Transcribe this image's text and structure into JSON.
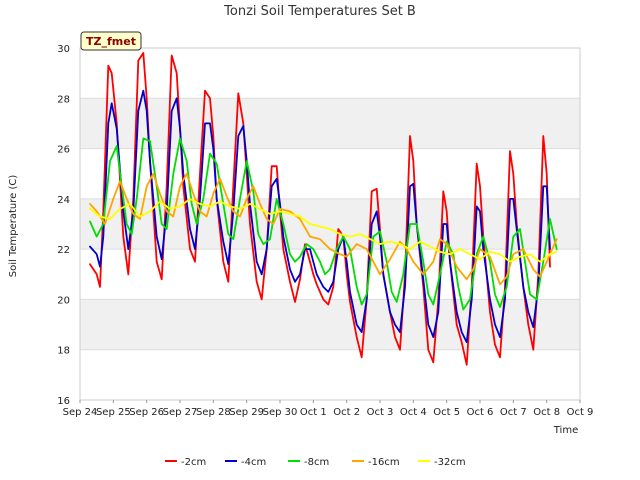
{
  "chart_data": {
    "type": "line",
    "title": "Tonzi Soil Temperatures Set B",
    "xlabel": "Time",
    "ylabel": "Soil Temperature (C)",
    "badge": "TZ_fmet",
    "xlim": [
      0,
      15
    ],
    "ylim": [
      16,
      30
    ],
    "x_tick_labels": [
      "Sep 24",
      "Sep 25",
      "Sep 26",
      "Sep 27",
      "Sep 28",
      "Sep 29",
      "Sep 30",
      "Oct 1",
      "Oct 2",
      "Oct 3",
      "Oct 4",
      "Oct 5",
      "Oct 6",
      "Oct 7",
      "Oct 8",
      "Oct 9"
    ],
    "y_ticks": [
      16,
      18,
      20,
      22,
      24,
      26,
      28,
      30
    ],
    "banding": true,
    "legend_position": "bottom",
    "series": [
      {
        "name": "-2cm",
        "color": "#ff0000",
        "x": [
          0.3,
          0.5,
          0.6,
          0.7,
          0.85,
          0.95,
          1.1,
          1.3,
          1.45,
          1.6,
          1.75,
          1.9,
          2.0,
          2.1,
          2.3,
          2.45,
          2.6,
          2.75,
          2.9,
          3.0,
          3.1,
          3.3,
          3.45,
          3.6,
          3.75,
          3.9,
          4.0,
          4.1,
          4.3,
          4.45,
          4.6,
          4.75,
          4.9,
          5.0,
          5.1,
          5.3,
          5.45,
          5.6,
          5.75,
          5.9,
          6.0,
          6.1,
          6.3,
          6.45,
          6.6,
          6.75,
          6.9,
          7.0,
          7.1,
          7.3,
          7.45,
          7.6,
          7.75,
          7.9,
          8.0,
          8.1,
          8.3,
          8.45,
          8.6,
          8.75,
          8.9,
          9.0,
          9.1,
          9.3,
          9.45,
          9.6,
          9.75,
          9.9,
          10.0,
          10.1,
          10.3,
          10.45,
          10.6,
          10.75,
          10.9,
          11.0,
          11.1,
          11.3,
          11.45,
          11.6,
          11.75,
          11.9,
          12.0,
          12.1,
          12.3,
          12.45,
          12.6,
          12.75,
          12.9,
          13.0,
          13.1,
          13.3,
          13.45,
          13.6,
          13.75,
          13.9,
          14.0,
          14.1
        ],
        "values": [
          21.4,
          21.0,
          20.5,
          23.5,
          29.3,
          29.0,
          27.0,
          22.5,
          21.0,
          24.0,
          29.5,
          29.8,
          28.0,
          25.5,
          21.5,
          20.8,
          24.5,
          29.7,
          29.0,
          26.8,
          24.5,
          22.0,
          21.5,
          25.0,
          28.3,
          28.0,
          26.5,
          24.0,
          21.5,
          20.7,
          24.5,
          28.2,
          27.0,
          25.0,
          23.0,
          20.7,
          20.0,
          22.0,
          25.3,
          25.3,
          23.5,
          22.0,
          20.7,
          19.9,
          20.8,
          22.2,
          21.5,
          21.0,
          20.6,
          20.0,
          19.8,
          20.5,
          22.8,
          22.5,
          21.0,
          19.9,
          18.5,
          17.7,
          20.0,
          24.3,
          24.4,
          22.8,
          21.0,
          19.5,
          18.5,
          18.0,
          21.0,
          26.5,
          25.5,
          23.0,
          20.5,
          18.0,
          17.5,
          20.0,
          24.3,
          23.5,
          21.5,
          19.0,
          18.3,
          17.4,
          20.5,
          25.4,
          24.5,
          22.5,
          19.5,
          18.2,
          17.7,
          20.5,
          25.9,
          25.0,
          23.0,
          20.5,
          19.0,
          18.0,
          21.0,
          26.5,
          25.0,
          21.3
        ]
      },
      {
        "name": "-4cm",
        "color": "#0000cc",
        "x": [
          0.3,
          0.5,
          0.6,
          0.7,
          0.85,
          0.95,
          1.1,
          1.3,
          1.45,
          1.6,
          1.75,
          1.9,
          2.0,
          2.1,
          2.3,
          2.45,
          2.6,
          2.75,
          2.9,
          3.0,
          3.1,
          3.3,
          3.45,
          3.6,
          3.75,
          3.9,
          4.0,
          4.1,
          4.3,
          4.45,
          4.6,
          4.75,
          4.9,
          5.0,
          5.1,
          5.3,
          5.45,
          5.6,
          5.75,
          5.9,
          6.0,
          6.1,
          6.3,
          6.45,
          6.6,
          6.75,
          6.9,
          7.0,
          7.1,
          7.3,
          7.45,
          7.6,
          7.75,
          7.9,
          8.0,
          8.1,
          8.3,
          8.45,
          8.6,
          8.75,
          8.9,
          9.0,
          9.1,
          9.3,
          9.45,
          9.6,
          9.75,
          9.9,
          10.0,
          10.1,
          10.3,
          10.45,
          10.6,
          10.75,
          10.9,
          11.0,
          11.1,
          11.3,
          11.45,
          11.6,
          11.75,
          11.9,
          12.0,
          12.1,
          12.3,
          12.45,
          12.6,
          12.75,
          12.9,
          13.0,
          13.1,
          13.3,
          13.45,
          13.6,
          13.75,
          13.9,
          14.0,
          14.1
        ],
        "values": [
          22.1,
          21.8,
          21.3,
          22.5,
          27.0,
          27.8,
          26.8,
          23.5,
          22.0,
          23.5,
          27.5,
          28.3,
          27.5,
          25.5,
          22.5,
          21.6,
          23.5,
          27.5,
          28.0,
          26.8,
          25.0,
          22.8,
          22.0,
          24.0,
          27.0,
          27.0,
          26.0,
          24.0,
          22.3,
          21.4,
          23.5,
          26.5,
          26.9,
          25.5,
          23.8,
          21.5,
          21.0,
          22.0,
          24.5,
          24.8,
          23.8,
          22.5,
          21.2,
          20.7,
          21.0,
          22.0,
          22.0,
          21.5,
          21.0,
          20.5,
          20.3,
          20.7,
          22.0,
          22.5,
          21.5,
          20.3,
          19.0,
          18.7,
          20.0,
          23.0,
          23.5,
          22.5,
          21.0,
          19.5,
          19.0,
          18.7,
          20.5,
          24.5,
          24.6,
          23.0,
          20.8,
          19.0,
          18.5,
          19.5,
          23.0,
          23.0,
          21.5,
          19.5,
          18.7,
          18.3,
          20.0,
          23.7,
          23.5,
          22.0,
          20.0,
          19.0,
          18.5,
          20.0,
          24.0,
          24.0,
          22.8,
          20.5,
          19.5,
          18.9,
          20.5,
          24.5,
          24.5,
          22.0
        ]
      },
      {
        "name": "-8cm",
        "color": "#00dd00",
        "x": [
          0.3,
          0.5,
          0.7,
          0.9,
          1.1,
          1.25,
          1.4,
          1.55,
          1.7,
          1.9,
          2.1,
          2.3,
          2.45,
          2.6,
          2.8,
          3.0,
          3.2,
          3.35,
          3.5,
          3.7,
          3.9,
          4.1,
          4.3,
          4.45,
          4.6,
          4.8,
          5.0,
          5.2,
          5.35,
          5.5,
          5.7,
          5.9,
          6.1,
          6.3,
          6.45,
          6.6,
          6.8,
          7.0,
          7.2,
          7.35,
          7.5,
          7.7,
          7.9,
          8.1,
          8.3,
          8.45,
          8.6,
          8.8,
          9.0,
          9.2,
          9.35,
          9.5,
          9.7,
          9.9,
          10.1,
          10.3,
          10.45,
          10.6,
          10.8,
          11.0,
          11.2,
          11.35,
          11.5,
          11.7,
          11.9,
          12.1,
          12.3,
          12.45,
          12.6,
          12.8,
          13.0,
          13.2,
          13.35,
          13.5,
          13.7,
          13.9,
          14.1,
          14.3
        ],
        "values": [
          23.1,
          22.5,
          23.0,
          25.5,
          26.1,
          24.5,
          23.0,
          22.6,
          24.0,
          26.4,
          26.3,
          24.5,
          23.0,
          22.8,
          25.0,
          26.4,
          25.5,
          23.8,
          23.0,
          24.0,
          25.8,
          25.4,
          23.8,
          22.6,
          22.4,
          24.0,
          25.5,
          24.3,
          22.6,
          22.2,
          22.4,
          24.0,
          23.0,
          21.8,
          21.5,
          21.7,
          22.2,
          22.0,
          21.5,
          21.0,
          21.2,
          22.0,
          22.5,
          22.0,
          20.5,
          19.8,
          20.2,
          22.5,
          22.7,
          21.5,
          20.3,
          19.9,
          21.0,
          23.0,
          23.0,
          21.5,
          20.2,
          19.8,
          21.0,
          22.3,
          21.8,
          20.5,
          19.6,
          20.0,
          21.8,
          22.5,
          21.5,
          20.2,
          19.7,
          20.5,
          22.5,
          22.8,
          21.5,
          20.2,
          20.0,
          21.5,
          23.2,
          22.0
        ]
      },
      {
        "name": "-16cm",
        "color": "#ffa500",
        "x": [
          0.3,
          0.5,
          0.75,
          1.0,
          1.2,
          1.4,
          1.6,
          1.8,
          2.0,
          2.2,
          2.4,
          2.6,
          2.8,
          3.0,
          3.2,
          3.4,
          3.6,
          3.8,
          4.0,
          4.2,
          4.4,
          4.6,
          4.8,
          5.0,
          5.2,
          5.4,
          5.6,
          5.8,
          6.0,
          6.3,
          6.6,
          6.9,
          7.2,
          7.5,
          7.8,
          8.0,
          8.3,
          8.6,
          8.8,
          9.0,
          9.3,
          9.6,
          9.8,
          10.0,
          10.3,
          10.6,
          10.8,
          11.0,
          11.3,
          11.6,
          11.8,
          12.0,
          12.3,
          12.6,
          12.8,
          13.0,
          13.3,
          13.6,
          13.8,
          14.0,
          14.3
        ],
        "values": [
          23.8,
          23.5,
          23.0,
          24.0,
          24.7,
          24.0,
          23.4,
          23.2,
          24.5,
          25.0,
          24.2,
          23.5,
          23.3,
          24.5,
          25.0,
          24.2,
          23.5,
          23.3,
          24.2,
          24.8,
          24.1,
          23.5,
          23.3,
          24.0,
          24.5,
          23.8,
          23.2,
          23.0,
          23.6,
          23.5,
          23.2,
          22.5,
          22.4,
          22.0,
          21.8,
          21.7,
          22.2,
          22.0,
          21.5,
          21.0,
          21.6,
          22.3,
          22.0,
          21.5,
          21.0,
          21.5,
          22.4,
          22.2,
          21.3,
          20.8,
          21.2,
          22.0,
          21.7,
          20.6,
          20.9,
          21.8,
          22.0,
          21.2,
          20.9,
          21.5,
          22.4
        ]
      },
      {
        "name": "-32cm",
        "color": "#ffff00",
        "x": [
          0.3,
          0.6,
          0.9,
          1.2,
          1.5,
          1.8,
          2.1,
          2.4,
          2.7,
          3.0,
          3.3,
          3.6,
          3.9,
          4.2,
          4.5,
          4.8,
          5.1,
          5.4,
          5.7,
          6.0,
          6.3,
          6.6,
          6.9,
          7.2,
          7.5,
          7.8,
          8.1,
          8.4,
          8.7,
          9.0,
          9.3,
          9.6,
          9.9,
          10.2,
          10.5,
          10.8,
          11.1,
          11.4,
          11.7,
          12.0,
          12.3,
          12.6,
          12.9,
          13.2,
          13.5,
          13.8,
          14.1,
          14.3
        ],
        "values": [
          23.6,
          23.3,
          23.2,
          23.6,
          23.8,
          23.3,
          23.5,
          23.9,
          23.6,
          23.7,
          24.0,
          23.8,
          23.7,
          23.9,
          23.7,
          23.6,
          23.8,
          23.6,
          23.4,
          23.5,
          23.4,
          23.3,
          23.0,
          22.9,
          22.8,
          22.6,
          22.5,
          22.6,
          22.4,
          22.2,
          22.3,
          22.2,
          22.0,
          22.3,
          22.1,
          21.9,
          21.8,
          22.0,
          21.8,
          21.6,
          21.9,
          21.8,
          21.5,
          21.7,
          21.8,
          21.5,
          21.8,
          21.9
        ]
      }
    ]
  }
}
